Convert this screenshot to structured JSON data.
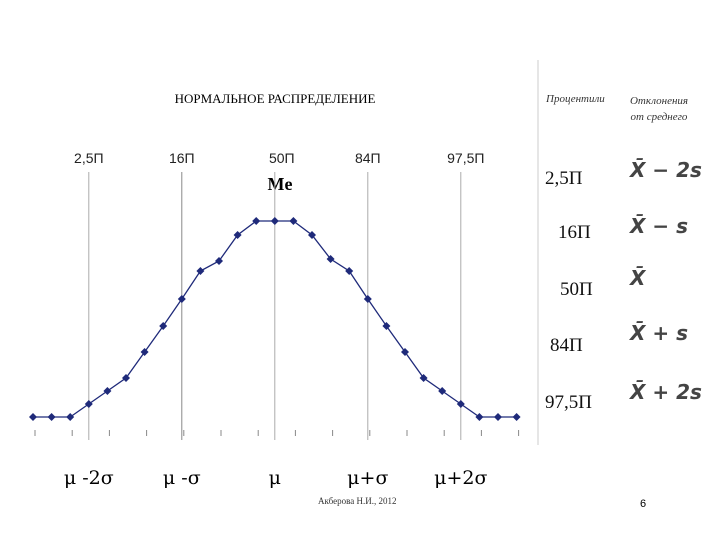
{
  "chart_data": {
    "type": "line",
    "title": "НОРМАЛЬНОЕ РАСПРЕДЕЛЕНИЕ",
    "categories": [
      null,
      null,
      null,
      null,
      null,
      null,
      null,
      null,
      null,
      null,
      null,
      null,
      null,
      null,
      null,
      null,
      null,
      null,
      null,
      null,
      null,
      null,
      null,
      null,
      null,
      null,
      null
    ],
    "values": [
      13,
      13,
      13,
      26,
      39,
      52,
      78,
      104,
      131,
      159,
      169,
      195,
      209,
      209,
      209,
      195,
      171,
      159,
      131,
      104,
      78,
      52,
      39,
      26,
      13,
      13,
      13
    ],
    "color": "#1f2a7a",
    "ylim": [
      0,
      215
    ],
    "percentile_labels": [
      "2,5П",
      "16П",
      "50П",
      "84П",
      "97,5П"
    ],
    "sigma_labels": [
      "μ -2σ",
      "μ -σ",
      "μ",
      "μ+σ",
      "μ+2σ"
    ],
    "annotation": "Me"
  },
  "table": {
    "headers": [
      "Процентили",
      "Отклонения от среднего"
    ],
    "rows": [
      [
        "2,5П",
        "X̄ − 2s"
      ],
      [
        "16П",
        "X̄ − s"
      ],
      [
        "50П",
        "X̄"
      ],
      [
        "84П",
        "X̄ + s"
      ],
      [
        "97,5П",
        "X̄ + 2s"
      ]
    ]
  },
  "footer": {
    "author": "Акберова Н.И., 2012",
    "page": "6"
  }
}
